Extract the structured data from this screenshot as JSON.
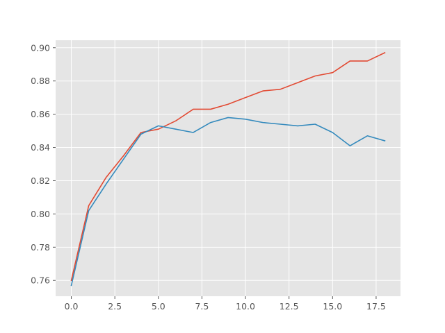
{
  "chart_data": {
    "type": "line",
    "title": "",
    "xlabel": "",
    "ylabel": "",
    "xlim": [
      -0.9,
      18.9
    ],
    "ylim": [
      0.7505,
      0.9045
    ],
    "xticks": [
      0.0,
      2.5,
      5.0,
      7.5,
      10.0,
      12.5,
      15.0,
      17.5
    ],
    "xtick_labels": [
      "0.0",
      "2.5",
      "5.0",
      "7.5",
      "10.0",
      "12.5",
      "15.0",
      "17.5"
    ],
    "yticks": [
      0.76,
      0.78,
      0.8,
      0.82,
      0.84,
      0.86,
      0.88,
      0.9
    ],
    "ytick_labels": [
      "0.76",
      "0.78",
      "0.80",
      "0.82",
      "0.84",
      "0.86",
      "0.88",
      "0.90"
    ],
    "grid": true,
    "legend": null,
    "x": [
      0,
      1,
      2,
      3,
      4,
      5,
      6,
      7,
      8,
      9,
      10,
      11,
      12,
      13,
      14,
      15,
      16,
      17,
      18
    ],
    "series": [
      {
        "color": "#E24A33",
        "values": [
          0.76,
          0.805,
          0.822,
          0.835,
          0.849,
          0.851,
          0.856,
          0.863,
          0.863,
          0.866,
          0.87,
          0.874,
          0.875,
          0.879,
          0.883,
          0.885,
          0.892,
          0.892,
          0.897
        ]
      },
      {
        "color": "#348ABD",
        "values": [
          0.757,
          0.802,
          0.818,
          0.833,
          0.848,
          0.853,
          0.851,
          0.849,
          0.855,
          0.858,
          0.857,
          0.855,
          0.854,
          0.853,
          0.854,
          0.849,
          0.841,
          0.847,
          0.844
        ]
      }
    ],
    "style": {
      "plot_background": "#E5E5E5",
      "grid_color": "#FFFFFF",
      "tick_color": "#555555"
    }
  }
}
